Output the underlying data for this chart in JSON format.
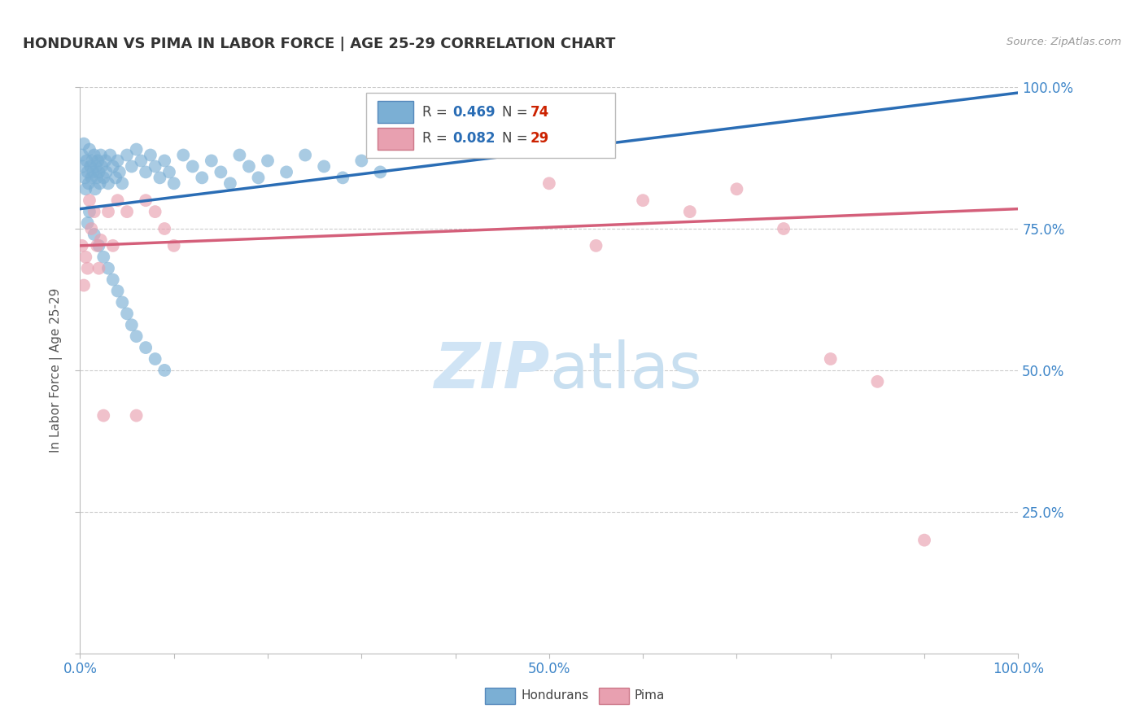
{
  "title": "HONDURAN VS PIMA IN LABOR FORCE | AGE 25-29 CORRELATION CHART",
  "source_text": "Source: ZipAtlas.com",
  "ylabel": "In Labor Force | Age 25-29",
  "xlim": [
    0.0,
    1.0
  ],
  "ylim": [
    0.0,
    1.0
  ],
  "xtick_positions": [
    0.0,
    0.1,
    0.2,
    0.3,
    0.4,
    0.5,
    0.6,
    0.7,
    0.8,
    0.9,
    1.0
  ],
  "xticklabels": [
    "0.0%",
    "",
    "",
    "",
    "",
    "50.0%",
    "",
    "",
    "",
    "",
    "100.0%"
  ],
  "ytick_positions": [
    0.0,
    0.25,
    0.5,
    0.75,
    1.0
  ],
  "yticklabels_right": [
    "",
    "25.0%",
    "50.0%",
    "75.0%",
    "100.0%"
  ],
  "honduran_color": "#7bafd4",
  "pima_color": "#e8a0b0",
  "honduran_line_color": "#2a6db5",
  "pima_line_color": "#d45f7a",
  "legend_R_color": "#2a6db5",
  "legend_N_color": "#cc2200",
  "honduran_R": 0.469,
  "honduran_N": 74,
  "pima_R": 0.082,
  "pima_N": 29,
  "watermark_zip": "ZIP",
  "watermark_atlas": "atlas",
  "watermark_color": "#d0e4f5",
  "grid_color": "#cccccc",
  "honduran_scatter_x": [
    0.002,
    0.003,
    0.004,
    0.005,
    0.006,
    0.007,
    0.008,
    0.009,
    0.01,
    0.011,
    0.012,
    0.013,
    0.014,
    0.015,
    0.016,
    0.017,
    0.018,
    0.019,
    0.02,
    0.021,
    0.022,
    0.023,
    0.025,
    0.027,
    0.028,
    0.03,
    0.032,
    0.035,
    0.038,
    0.04,
    0.042,
    0.045,
    0.05,
    0.055,
    0.06,
    0.065,
    0.07,
    0.075,
    0.08,
    0.085,
    0.09,
    0.095,
    0.1,
    0.11,
    0.12,
    0.13,
    0.14,
    0.15,
    0.16,
    0.17,
    0.18,
    0.19,
    0.2,
    0.22,
    0.24,
    0.26,
    0.28,
    0.3,
    0.32,
    0.01,
    0.008,
    0.015,
    0.02,
    0.025,
    0.03,
    0.035,
    0.04,
    0.045,
    0.05,
    0.055,
    0.06,
    0.07,
    0.08,
    0.09
  ],
  "honduran_scatter_y": [
    0.88,
    0.86,
    0.9,
    0.84,
    0.82,
    0.87,
    0.85,
    0.83,
    0.89,
    0.86,
    0.84,
    0.87,
    0.85,
    0.88,
    0.82,
    0.86,
    0.84,
    0.87,
    0.85,
    0.83,
    0.88,
    0.86,
    0.84,
    0.87,
    0.85,
    0.83,
    0.88,
    0.86,
    0.84,
    0.87,
    0.85,
    0.83,
    0.88,
    0.86,
    0.89,
    0.87,
    0.85,
    0.88,
    0.86,
    0.84,
    0.87,
    0.85,
    0.83,
    0.88,
    0.86,
    0.84,
    0.87,
    0.85,
    0.83,
    0.88,
    0.86,
    0.84,
    0.87,
    0.85,
    0.88,
    0.86,
    0.84,
    0.87,
    0.85,
    0.78,
    0.76,
    0.74,
    0.72,
    0.7,
    0.68,
    0.66,
    0.64,
    0.62,
    0.6,
    0.58,
    0.56,
    0.54,
    0.52,
    0.5
  ],
  "pima_scatter_x": [
    0.002,
    0.004,
    0.006,
    0.008,
    0.01,
    0.012,
    0.015,
    0.018,
    0.02,
    0.022,
    0.025,
    0.03,
    0.035,
    0.04,
    0.05,
    0.06,
    0.07,
    0.08,
    0.09,
    0.1,
    0.5,
    0.55,
    0.6,
    0.65,
    0.7,
    0.75,
    0.8,
    0.85,
    0.9
  ],
  "pima_scatter_y": [
    0.72,
    0.65,
    0.7,
    0.68,
    0.8,
    0.75,
    0.78,
    0.72,
    0.68,
    0.73,
    0.42,
    0.78,
    0.72,
    0.8,
    0.78,
    0.42,
    0.8,
    0.78,
    0.75,
    0.72,
    0.83,
    0.72,
    0.8,
    0.78,
    0.82,
    0.75,
    0.52,
    0.48,
    0.2
  ],
  "honduran_line_x0": 0.0,
  "honduran_line_y0": 0.785,
  "honduran_line_x1": 1.0,
  "honduran_line_y1": 0.99,
  "pima_line_x0": 0.0,
  "pima_line_y0": 0.72,
  "pima_line_x1": 1.0,
  "pima_line_y1": 0.785
}
